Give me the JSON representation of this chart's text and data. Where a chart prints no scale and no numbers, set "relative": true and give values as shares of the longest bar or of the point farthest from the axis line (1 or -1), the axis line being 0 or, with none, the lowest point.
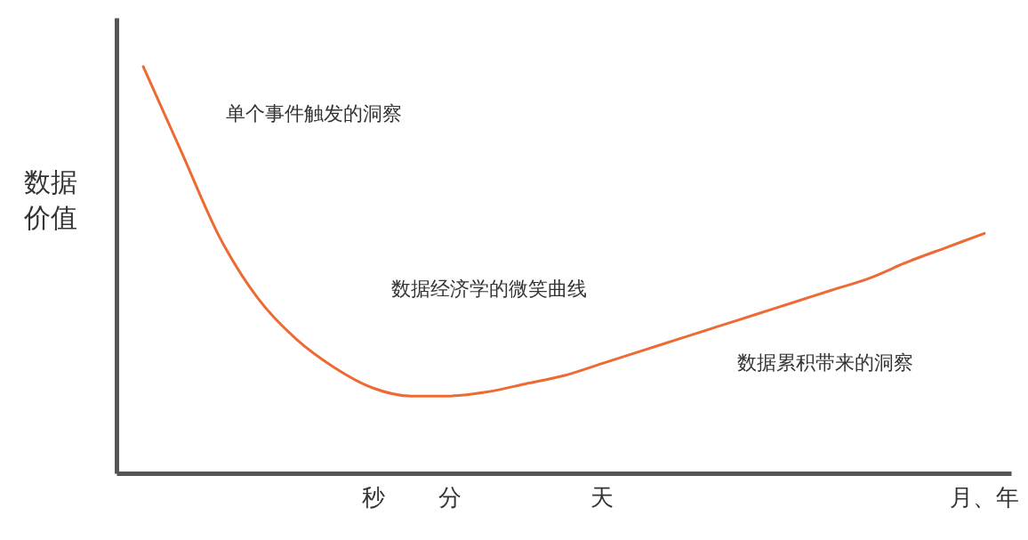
{
  "chart_data": {
    "type": "line",
    "relative": true,
    "ylabel": "数据价值",
    "categories": [
      null,
      null,
      null,
      null,
      null,
      null,
      "秒",
      null,
      "分",
      null,
      null,
      null,
      "天",
      null,
      null,
      null,
      null,
      null,
      null,
      null,
      null,
      null,
      "月、年"
    ],
    "series": [
      {
        "color": "#ee6a35",
        "values": [
          1.0,
          0.79,
          0.58,
          0.43,
          0.33,
          0.26,
          0.21,
          0.19,
          0.19,
          0.2,
          0.22,
          0.24,
          0.27,
          0.3,
          0.33,
          0.36,
          0.39,
          0.42,
          0.45,
          0.48,
          0.52,
          0.555,
          0.59
        ]
      }
    ],
    "annotations": [
      "单个事件触发的洞察",
      "数据经济学的微笑曲线",
      "数据累积带来的洞察"
    ],
    "marker": "none",
    "grid": false
  }
}
